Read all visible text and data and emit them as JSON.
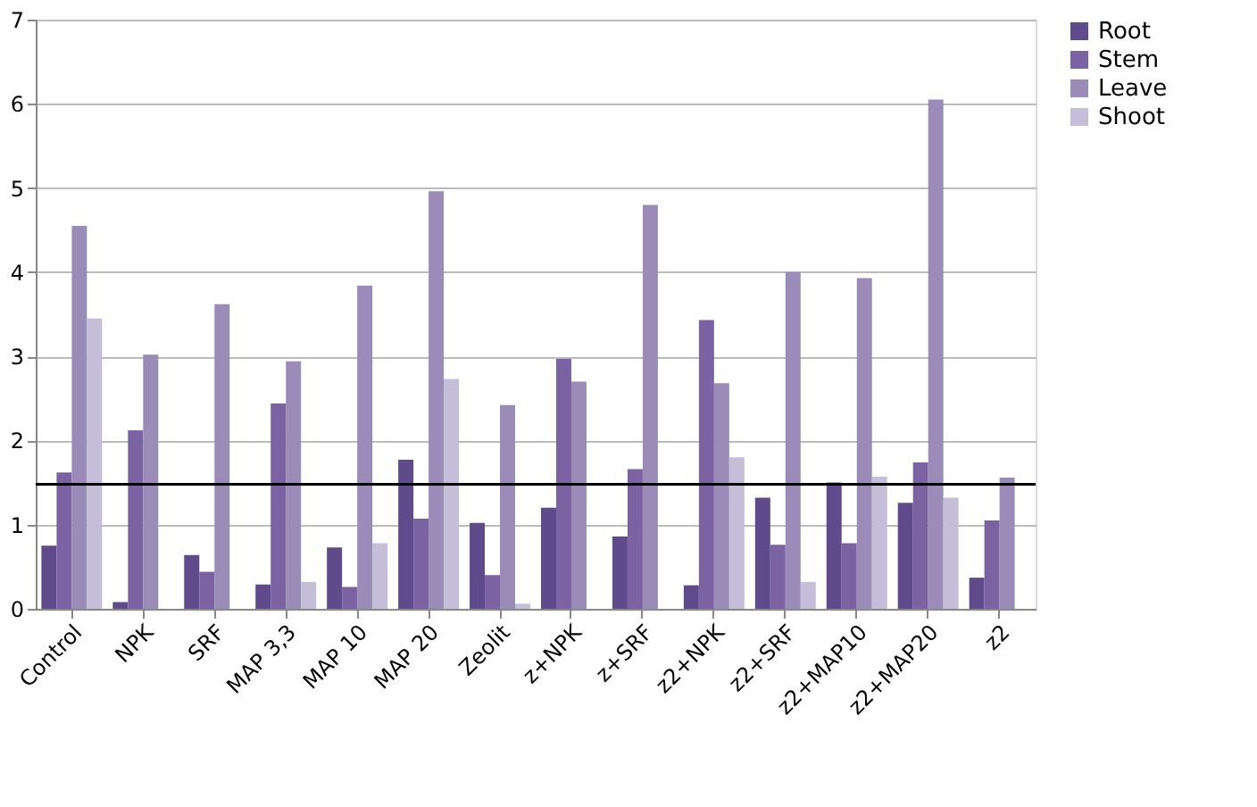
{
  "chart_data": {
    "type": "bar",
    "categories": [
      "Control",
      "NPK",
      "SRF",
      "MAP 3,3",
      "MAP 10",
      "MAP 20",
      "Zeolit",
      "z+NPK",
      "z+SRF",
      "z2+NPK",
      "z2+SRF",
      "z2+MAP10",
      "z2+MAP20",
      "z2"
    ],
    "series": [
      {
        "name": "Root",
        "color": "#5f4b8b",
        "values": [
          0.75,
          0.08,
          0.64,
          0.29,
          0.73,
          1.77,
          1.02,
          1.2,
          0.86,
          0.28,
          1.32,
          1.5,
          1.26,
          0.37
        ]
      },
      {
        "name": "Stem",
        "color": "#7a62a3",
        "values": [
          1.62,
          2.12,
          0.44,
          2.44,
          0.26,
          1.07,
          0.4,
          2.97,
          1.66,
          3.43,
          0.76,
          0.78,
          1.74,
          1.05
        ]
      },
      {
        "name": "Leave",
        "color": "#9b8bb8",
        "values": [
          4.55,
          3.02,
          3.62,
          2.94,
          3.84,
          4.96,
          2.42,
          2.7,
          4.8,
          2.68,
          4.0,
          3.93,
          6.05,
          1.56
        ]
      },
      {
        "name": "Shoot",
        "color": "#c5bed8",
        "values": [
          3.45,
          null,
          null,
          0.32,
          0.78,
          2.73,
          0.06,
          null,
          null,
          1.8,
          0.32,
          1.57,
          1.32,
          null
        ]
      }
    ],
    "ylim": [
      0,
      7
    ],
    "yticks": [
      0,
      1,
      2,
      3,
      4,
      5,
      6,
      7
    ],
    "grid": "y",
    "legend": "right",
    "ref_lines": [
      {
        "axis": "y",
        "value": 1.48,
        "color": "#000000"
      }
    ]
  }
}
